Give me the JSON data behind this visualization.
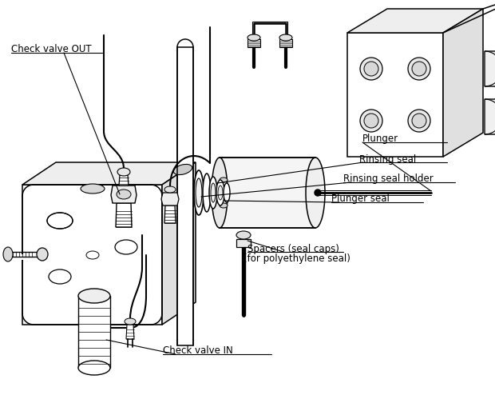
{
  "bg_color": "#ffffff",
  "labels": {
    "check_valve_out": "Check valve OUT",
    "check_valve_in": "Check valve IN",
    "plunger": "Plunger",
    "rinsing_seal": "Rinsing seal",
    "rinsing_seal_holder": "Rinsing seal holder",
    "plunger_seal": "Plunger seal",
    "spacers": "Spacers (seal caps)",
    "polyethylene": "(for polyethylene seal)"
  }
}
